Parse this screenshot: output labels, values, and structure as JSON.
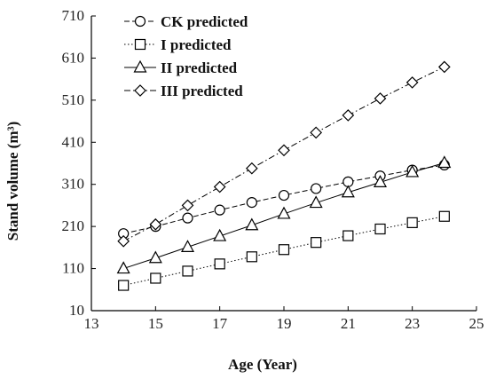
{
  "chart_data": {
    "type": "line",
    "title": "",
    "xlabel": "Age (Year)",
    "ylabel": "Stand volume (m³)",
    "xlim": [
      13,
      25
    ],
    "ylim": [
      10,
      710
    ],
    "xticks": [
      13,
      15,
      17,
      19,
      21,
      23,
      25
    ],
    "yticks": [
      10,
      110,
      210,
      310,
      410,
      510,
      610,
      710
    ],
    "grid": false,
    "legend_position": "top-left",
    "x": [
      14,
      15,
      16,
      17,
      18,
      19,
      20,
      21,
      22,
      23,
      24
    ],
    "series": [
      {
        "name": "CK predicted",
        "marker": "circle",
        "line_style": "dashed",
        "values": [
          193,
          210,
          230,
          249,
          267,
          284,
          300,
          316,
          330,
          344,
          356
        ]
      },
      {
        "name": "I predicted",
        "marker": "square",
        "line_style": "dotted",
        "values": [
          70,
          87,
          104,
          121,
          138,
          155,
          172,
          188,
          204,
          219,
          234
        ]
      },
      {
        "name": "II predicted",
        "marker": "triangle",
        "line_style": "solid",
        "values": [
          110,
          135,
          161,
          187,
          213,
          240,
          266,
          291,
          315,
          339,
          361
        ]
      },
      {
        "name": "III predicted",
        "marker": "diamond",
        "line_style": "dashdot",
        "values": [
          175,
          215,
          260,
          304,
          348,
          391,
          433,
          474,
          514,
          552,
          589
        ]
      }
    ]
  }
}
